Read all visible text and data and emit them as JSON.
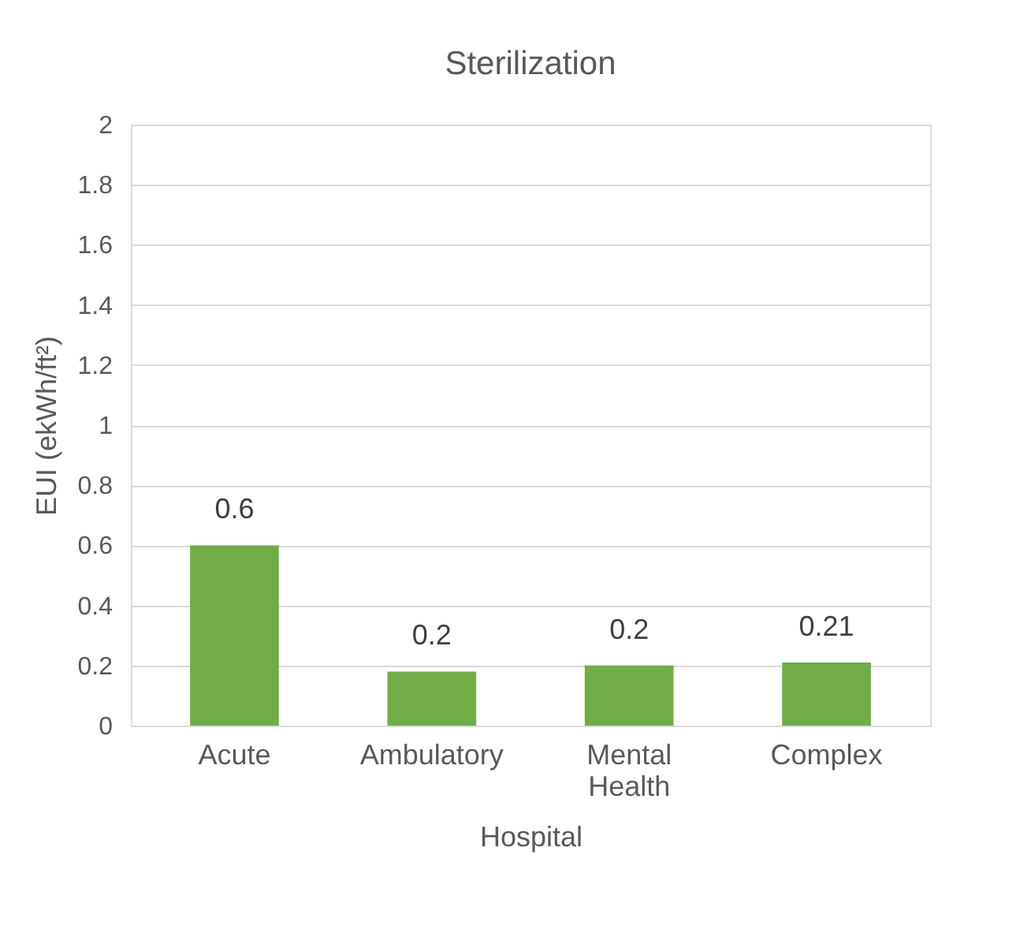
{
  "chart_data": {
    "type": "bar",
    "title": "Sterilization",
    "xlabel": "Hospital",
    "ylabel": "EUI (ekWh/ft²)",
    "categories": [
      "Acute",
      "Ambulatory",
      "Mental Health",
      "Complex"
    ],
    "values": [
      0.6,
      0.18,
      0.2,
      0.21
    ],
    "color": "#70ad47",
    "value_labels": [
      "0.6",
      "0.2",
      "0.2",
      "0.21"
    ],
    "ylim": [
      0,
      2
    ],
    "yticks": [
      0,
      0.2,
      0.4,
      0.6,
      0.8,
      1,
      1.2,
      1.4,
      1.6,
      1.8,
      2
    ],
    "grid": "y"
  }
}
